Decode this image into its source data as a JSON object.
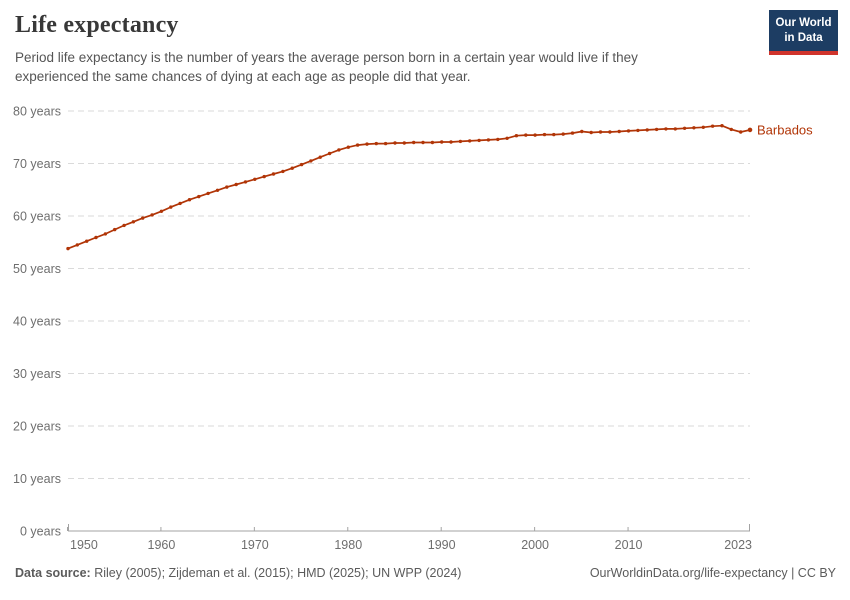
{
  "header": {
    "title": "Life expectancy",
    "subtitle": "Period life expectancy is the number of years the average person born in a certain year would live if they experienced the same chances of dying at each age as people did that year.",
    "logo": {
      "line1": "Our World",
      "line2": "in Data"
    }
  },
  "chart_data": {
    "type": "line",
    "title": "Life expectancy",
    "entity": "Barbados",
    "xlim": [
      1950,
      2023
    ],
    "ylim": [
      0,
      80
    ],
    "x_ticks": [
      1950,
      1960,
      1970,
      1980,
      1990,
      2000,
      2010,
      2023
    ],
    "y_ticks": [
      0,
      10,
      20,
      30,
      40,
      50,
      60,
      70,
      80
    ],
    "y_tick_suffix": " years",
    "grid": "dashed-horizontal",
    "legend_position": "end-of-line-label",
    "series": [
      {
        "name": "Barbados",
        "color": "#b13507",
        "x": [
          1950,
          1951,
          1952,
          1953,
          1954,
          1955,
          1956,
          1957,
          1958,
          1959,
          1960,
          1961,
          1962,
          1963,
          1964,
          1965,
          1966,
          1967,
          1968,
          1969,
          1970,
          1971,
          1972,
          1973,
          1974,
          1975,
          1976,
          1977,
          1978,
          1979,
          1980,
          1981,
          1982,
          1983,
          1984,
          1985,
          1986,
          1987,
          1988,
          1989,
          1990,
          1991,
          1992,
          1993,
          1994,
          1995,
          1996,
          1997,
          1998,
          1999,
          2000,
          2001,
          2002,
          2003,
          2004,
          2005,
          2006,
          2007,
          2008,
          2009,
          2010,
          2011,
          2012,
          2013,
          2014,
          2015,
          2016,
          2017,
          2018,
          2019,
          2020,
          2021,
          2022,
          2023
        ],
        "values": [
          53.8,
          54.5,
          55.2,
          55.9,
          56.6,
          57.4,
          58.2,
          58.9,
          59.6,
          60.2,
          60.9,
          61.7,
          62.4,
          63.1,
          63.7,
          64.3,
          64.9,
          65.5,
          66.0,
          66.5,
          67.0,
          67.5,
          68.0,
          68.5,
          69.1,
          69.8,
          70.5,
          71.2,
          71.9,
          72.6,
          73.1,
          73.5,
          73.7,
          73.8,
          73.8,
          73.9,
          73.9,
          74.0,
          74.0,
          74.0,
          74.1,
          74.1,
          74.2,
          74.3,
          74.4,
          74.5,
          74.6,
          74.8,
          75.3,
          75.4,
          75.4,
          75.5,
          75.5,
          75.6,
          75.8,
          76.1,
          75.9,
          76.0,
          76.0,
          76.1,
          76.2,
          76.3,
          76.4,
          76.5,
          76.6,
          76.6,
          76.7,
          76.8,
          76.9,
          77.1,
          77.2,
          76.5,
          76.0,
          76.4
        ]
      }
    ]
  },
  "colors": {
    "gridline": "#dadada",
    "axis": "#a3a3a3",
    "tick_label": "#6e6e6e"
  },
  "footer": {
    "source_label": "Data source:",
    "source_text": " Riley (2005); Zijdeman et al. (2015); HMD (2025); UN WPP (2024)",
    "attribution": "OurWorldinData.org/life-expectancy | CC BY"
  }
}
